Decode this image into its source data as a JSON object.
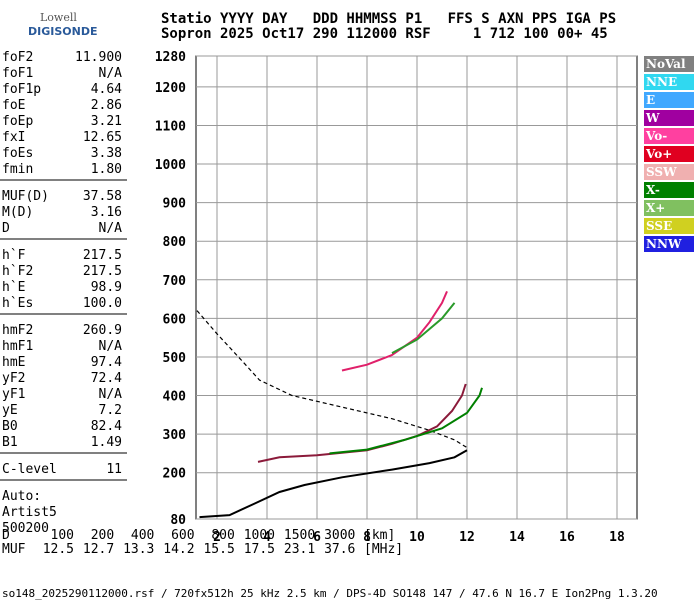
{
  "logo": {
    "top": "Lowell",
    "bottom": "DIGISONDE"
  },
  "header": [
    "Statio YYYY DAY   DDD HHMMSS P1   FFS S AXN PPS IGA PS",
    "Sopron 2025 Oct17 290 112000 RSF     1 712 100 00+ 45"
  ],
  "parameters": [
    [
      [
        "foF2",
        "11.900"
      ],
      [
        "foF1",
        "N/A"
      ],
      [
        "foF1p",
        "4.64"
      ],
      [
        "foE",
        "2.86"
      ],
      [
        "foEp",
        "3.21"
      ],
      [
        "fxI",
        "12.65"
      ],
      [
        "foEs",
        "3.38"
      ],
      [
        "fmin",
        "1.80"
      ]
    ],
    [
      [
        "MUF(D)",
        "37.58"
      ],
      [
        "M(D)",
        "3.16"
      ],
      [
        "D",
        "N/A"
      ]
    ],
    [
      [
        "h`F",
        "217.5"
      ],
      [
        "h`F2",
        "217.5"
      ],
      [
        "h`E",
        "98.9"
      ],
      [
        "h`Es",
        "100.0"
      ]
    ],
    [
      [
        "hmF2",
        "260.9"
      ],
      [
        "hmF1",
        "N/A"
      ],
      [
        "hmE",
        "97.4"
      ],
      [
        "yF2",
        "72.4"
      ],
      [
        "yF1",
        "N/A"
      ],
      [
        "yE",
        "7.2"
      ],
      [
        "B0",
        "82.4"
      ],
      [
        "B1",
        "1.49"
      ]
    ],
    [
      [
        "C-level",
        "11"
      ]
    ]
  ],
  "auto": [
    "Auto:",
    "Artist5",
    "500200"
  ],
  "muf_table": {
    "d_label": "D",
    "distances": [
      "100",
      "200",
      "400",
      "600",
      "800",
      "1000",
      "1500",
      "3000"
    ],
    "d_unit": "[km]",
    "muf_label": "MUF",
    "mufs": [
      "12.5",
      "12.7",
      "13.3",
      "14.2",
      "15.5",
      "17.5",
      "23.1",
      "37.6"
    ],
    "muf_unit": "[MHz]"
  },
  "footer": "so148_2025290112000.rsf / 720fx512h 25 kHz 2.5 km / DPS-4D SO148 147 / 47.6 N 16.7 E Ion2Png 1.3.20",
  "chart_data": {
    "type": "line",
    "xlim": [
      1.16,
      18.8
    ],
    "xticks": [
      2,
      4,
      6,
      8,
      10,
      12,
      14,
      16,
      18
    ],
    "ylim": [
      80,
      1280
    ],
    "yticks": [
      80,
      200,
      300,
      400,
      500,
      600,
      700,
      800,
      900,
      1000,
      1100,
      1200,
      1280
    ],
    "grid": true,
    "legend": [
      {
        "label": "NoVal",
        "color": "#808080"
      },
      {
        "label": "NNE",
        "color": "#30d8f0"
      },
      {
        "label": "E",
        "color": "#40a8ff"
      },
      {
        "label": "W",
        "color": "#a000a0"
      },
      {
        "label": "Vo-",
        "color": "#ff40a0"
      },
      {
        "label": "Vo+",
        "color": "#e00020"
      },
      {
        "label": "SSW",
        "color": "#f0b0b0"
      },
      {
        "label": "X-",
        "color": "#008000"
      },
      {
        "label": "X+",
        "color": "#80c060"
      },
      {
        "label": "SSE",
        "color": "#d0d020"
      },
      {
        "label": "NNW",
        "color": "#2020e0"
      }
    ],
    "series": [
      {
        "color": "#000000",
        "style": "dashed",
        "x": [
          1.2,
          2,
          3,
          3.7,
          5,
          7,
          9,
          10.5,
          11.5,
          12
        ],
        "y": [
          620,
          560,
          490,
          440,
          400,
          370,
          340,
          310,
          285,
          265
        ]
      },
      {
        "color": "#000000",
        "style": "solid",
        "x": [
          1.3,
          2.5,
          3.5,
          4.5,
          5.5,
          7,
          9,
          10.5,
          11.5,
          12
        ],
        "y": [
          85,
          90,
          120,
          150,
          168,
          188,
          208,
          225,
          240,
          258
        ]
      },
      {
        "color": "#8b1a3a",
        "style": "solid",
        "x": [
          3.64,
          4.5,
          6,
          8,
          9,
          10,
          10.8,
          11.4,
          11.8,
          11.95
        ],
        "y": [
          228,
          240,
          245,
          258,
          275,
          295,
          320,
          360,
          400,
          430
        ]
      },
      {
        "color": "#008000",
        "style": "solid",
        "x": [
          6.5,
          8,
          9.5,
          11,
          12,
          12.5,
          12.6
        ],
        "y": [
          250,
          260,
          285,
          315,
          355,
          400,
          420
        ]
      },
      {
        "color": "#e0206a",
        "style": "solid",
        "x": [
          7,
          8,
          9,
          10,
          10.5,
          11,
          11.2
        ],
        "y": [
          465,
          480,
          505,
          550,
          590,
          640,
          670
        ]
      },
      {
        "color": "#2a9a2a",
        "style": "solid",
        "x": [
          9,
          10,
          11,
          11.5
        ],
        "y": [
          510,
          545,
          600,
          640
        ]
      }
    ]
  }
}
